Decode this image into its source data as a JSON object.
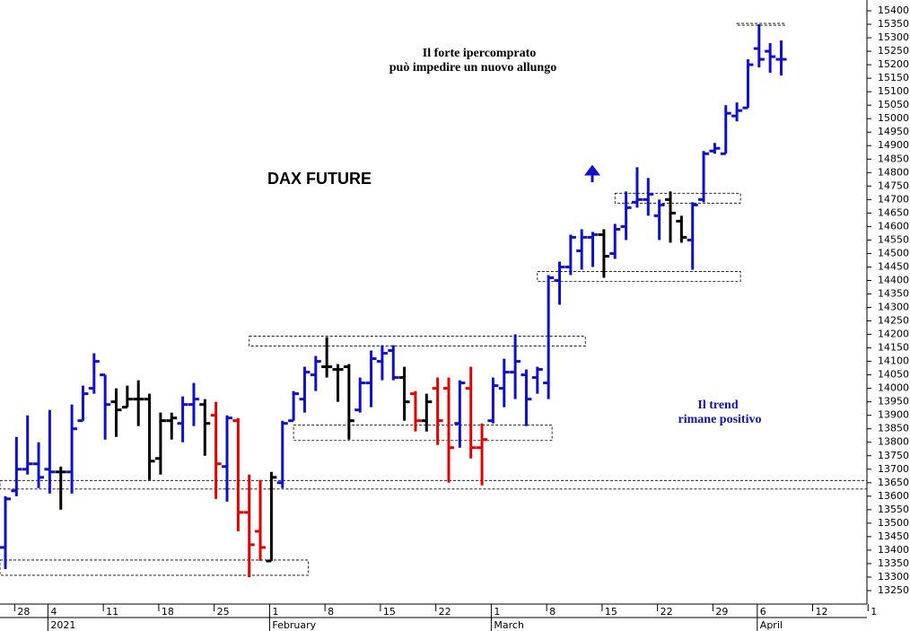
{
  "chart_data": {
    "type": "ohlc",
    "title": "DAX FUTURE",
    "annotations": [
      {
        "lines": [
          "Il forte ipercomprato",
          "può impedire un nuovo allungo"
        ],
        "color": "#000000"
      },
      {
        "lines": [
          "Il trend",
          "rimane positivo"
        ],
        "color": "#1010b0"
      }
    ],
    "categories": [
      null,
      "28",
      null,
      null,
      "4",
      null,
      null,
      null,
      null,
      "11",
      null,
      null,
      null,
      null,
      "18",
      null,
      null,
      null,
      null,
      "25",
      null,
      null,
      null,
      null,
      "1",
      null,
      null,
      null,
      null,
      "8",
      null,
      null,
      null,
      null,
      "15",
      null,
      null,
      null,
      null,
      "22",
      null,
      null,
      null,
      null,
      "1",
      null,
      null,
      null,
      null,
      "8",
      null,
      null,
      null,
      null,
      "15",
      null,
      null,
      null,
      null,
      "22",
      null,
      null,
      null,
      null,
      "29",
      null,
      null,
      null,
      "6",
      null,
      null,
      null,
      null,
      "12",
      null,
      null,
      null,
      null,
      "1"
    ],
    "month_labels": [
      null,
      null,
      null,
      null,
      "2021",
      null,
      null,
      null,
      null,
      null,
      null,
      null,
      null,
      null,
      null,
      null,
      null,
      null,
      null,
      null,
      null,
      null,
      null,
      null,
      "February",
      null,
      null,
      null,
      null,
      null,
      null,
      null,
      null,
      null,
      null,
      null,
      null,
      null,
      null,
      null,
      null,
      null,
      null,
      null,
      "March",
      null,
      null,
      null,
      null,
      null,
      null,
      null,
      null,
      null,
      null,
      null,
      null,
      null,
      null,
      null,
      null,
      null,
      null,
      null,
      null,
      null,
      null,
      null,
      "April",
      null,
      null,
      null,
      null,
      null,
      null,
      null,
      null,
      null,
      null
    ],
    "open": [
      13410,
      13620,
      13700,
      13720,
      13700,
      13690,
      13690,
      13880,
      14000,
      14050,
      13950,
      13930,
      13960,
      13960,
      13740,
      13880,
      13870,
      13940,
      13940,
      13900,
      13710,
      13880,
      13540,
      13470,
      13360,
      13650,
      13880,
      13960,
      14050,
      14080,
      14070,
      14080,
      13920,
      14020,
      14100,
      14140,
      14040,
      13980,
      13880,
      14000,
      14000,
      13870,
      14000,
      13780,
      13880,
      14000,
      14060,
      14050,
      14040,
      14020,
      14400,
      14450,
      14510,
      14560,
      14570,
      14500,
      14600,
      14690,
      14700,
      14640,
      14700,
      14620,
      14550,
      14700,
      14880,
      14870,
      15010,
      15040,
      15260,
      15250,
      15220,
      null,
      null,
      null,
      null,
      null,
      null,
      null,
      null
    ],
    "high": [
      13600,
      13820,
      13900,
      13800,
      13920,
      13710,
      13940,
      14010,
      14130,
      14050,
      14000,
      14010,
      14030,
      13980,
      13910,
      13910,
      13970,
      14020,
      13960,
      13950,
      13900,
      13890,
      13680,
      13660,
      13690,
      13880,
      13990,
      14080,
      14120,
      14190,
      14090,
      14090,
      14040,
      14140,
      14160,
      14160,
      14080,
      13990,
      13980,
      14040,
      14040,
      14030,
      14080,
      13870,
      14040,
      14110,
      14200,
      14070,
      14080,
      14420,
      14470,
      14570,
      14590,
      14580,
      14590,
      14610,
      14730,
      14820,
      14780,
      14700,
      14730,
      14640,
      14690,
      14880,
      14910,
      15050,
      15060,
      15220,
      15350,
      15280,
      15290,
      null,
      null,
      null,
      null,
      null,
      null,
      null,
      null
    ],
    "low": [
      13330,
      13600,
      13680,
      13630,
      13610,
      13550,
      13610,
      13880,
      13980,
      13810,
      13820,
      13930,
      13860,
      13660,
      13680,
      13810,
      13800,
      13860,
      13750,
      13590,
      13580,
      13470,
      13300,
      13360,
      13360,
      13630,
      13880,
      13910,
      13990,
      14040,
      13950,
      13810,
      13910,
      13930,
      14030,
      14030,
      13880,
      13840,
      13840,
      13790,
      13650,
      13780,
      13740,
      13640,
      13870,
      13930,
      13960,
      13860,
      13980,
      13960,
      14310,
      14420,
      14440,
      14450,
      14410,
      14480,
      14550,
      14670,
      14640,
      14550,
      14540,
      14540,
      14440,
      14690,
      14870,
      14870,
      14990,
      15040,
      15190,
      15170,
      15160,
      null,
      null,
      null,
      null,
      null,
      null,
      null,
      null
    ],
    "close": [
      13590,
      13700,
      13720,
      13670,
      13690,
      13690,
      13850,
      13980,
      14100,
      13940,
      13920,
      13960,
      13960,
      13730,
      13880,
      13890,
      13940,
      13960,
      13870,
      13720,
      13890,
      13540,
      13420,
      13410,
      13670,
      13870,
      13980,
      14060,
      14100,
      14080,
      14070,
      13880,
      14020,
      14110,
      14130,
      14040,
      13950,
      13880,
      13950,
      13880,
      13780,
      14020,
      13780,
      13810,
      14010,
      14060,
      14100,
      13960,
      14070,
      14410,
      14450,
      14560,
      14560,
      14570,
      14490,
      14590,
      14670,
      14700,
      14720,
      14680,
      14650,
      14560,
      14680,
      14870,
      14890,
      15020,
      15030,
      15200,
      15220,
      15230,
      15220,
      null,
      null,
      null,
      null,
      null,
      null,
      null,
      null
    ],
    "bar_colors": [
      "#1010c8",
      "#1010c8",
      "#1010c8",
      "#1010c8",
      "#1010c8",
      "#000000",
      "#1010c8",
      "#1010c8",
      "#1010c8",
      "#1010c8",
      "#000000",
      "#000000",
      "#000000",
      "#000000",
      "#000000",
      "#000000",
      "#1010c8",
      "#1010c8",
      "#000000",
      "#e00000",
      "#1010c8",
      "#e00000",
      "#e00000",
      "#e00000",
      "#000000",
      "#1010c8",
      "#1010c8",
      "#1010c8",
      "#1010c8",
      "#000000",
      "#000000",
      "#000000",
      "#1010c8",
      "#1010c8",
      "#1010c8",
      "#1010c8",
      "#000000",
      "#e00000",
      "#000000",
      "#e00000",
      "#e00000",
      "#1010c8",
      "#e00000",
      "#e00000",
      "#1010c8",
      "#1010c8",
      "#1010c8",
      "#1010c8",
      "#1010c8",
      "#1010c8",
      "#1010c8",
      "#1010c8",
      "#1010c8",
      "#1010c8",
      "#000000",
      "#1010c8",
      "#1010c8",
      "#1010c8",
      "#1010c8",
      "#1010c8",
      "#000000",
      "#000000",
      "#1010c8",
      "#1010c8",
      "#1010c8",
      "#1010c8",
      "#1010c8",
      "#1010c8",
      "#1010c8",
      "#1010c8",
      "#1010c8",
      null,
      null,
      null,
      null,
      null,
      null,
      null,
      null
    ],
    "zones": [
      {
        "from": -1,
        "to": 27,
        "low": 13310,
        "high": 13360
      },
      {
        "from": -1,
        "to": 78,
        "low": 13630,
        "high": 13655
      },
      {
        "from": 22,
        "to": 52,
        "low": 14160,
        "high": 14190
      },
      {
        "from": 26,
        "to": 49,
        "low": 13810,
        "high": 13860
      },
      {
        "from": 48,
        "to": 66,
        "low": 14400,
        "high": 14430
      },
      {
        "from": 55,
        "to": 66,
        "low": 14690,
        "high": 14720
      },
      {
        "from": 66,
        "to": 70,
        "low": 15350,
        "high": 15350
      }
    ],
    "ylim": [
      13200,
      15440
    ],
    "yticks": [
      13250,
      13300,
      13350,
      13400,
      13450,
      13500,
      13550,
      13600,
      13650,
      13700,
      13750,
      13800,
      13850,
      13900,
      13950,
      14000,
      14050,
      14100,
      14150,
      14200,
      14250,
      14300,
      14350,
      14400,
      14450,
      14500,
      14550,
      14600,
      14650,
      14700,
      14750,
      14800,
      14850,
      14900,
      14950,
      15000,
      15050,
      15100,
      15150,
      15200,
      15250,
      15300,
      15350,
      15400
    ]
  }
}
